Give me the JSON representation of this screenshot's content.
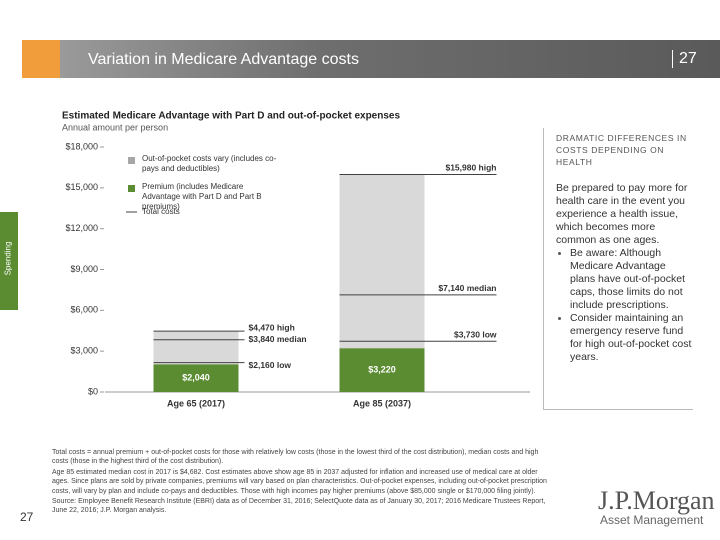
{
  "header": {
    "title": "Variation in Medicare Advantage costs",
    "page_number": "27"
  },
  "side_tab": "Spending",
  "chart_data": {
    "type": "stacked-bar",
    "title": "Estimated Medicare Advantage with Part D and out-of-pocket expenses",
    "subtitle": "Annual amount per person",
    "categories": [
      "Age 65 (2017)",
      "Age 85 (2037)"
    ],
    "series": [
      {
        "name": "Premium (includes Medicare Advantage with Part D and Part B premiums)",
        "color": "#5b8c32",
        "values": [
          2040,
          3220
        ],
        "value_labels": [
          "$2,040",
          "$3,220"
        ]
      },
      {
        "name": "Out-of-pocket costs vary (includes co-pays and deductibles)",
        "color": "#d9d9d9",
        "values": [
          2430,
          12760
        ]
      }
    ],
    "total_costs": {
      "name": "Total costs",
      "color": "#404040",
      "levels": [
        {
          "values": [
            4470,
            15980
          ],
          "value_labels": [
            "$4,470 high",
            "$15,980 high"
          ]
        },
        {
          "values": [
            3840,
            7140
          ],
          "value_labels": [
            "$3,840 median",
            "$7,140 median"
          ]
        },
        {
          "values": [
            2160,
            3730
          ],
          "value_labels": [
            "$2,160 low",
            "$3,730 low"
          ]
        }
      ]
    },
    "ylim": [
      0,
      18000
    ],
    "yticks": [
      {
        "value": 0,
        "label": "$0"
      },
      {
        "value": 3000,
        "label": "$3,000"
      },
      {
        "value": 6000,
        "label": "$6,000"
      },
      {
        "value": 9000,
        "label": "$9,000"
      },
      {
        "value": 12000,
        "label": "$12,000"
      },
      {
        "value": 15000,
        "label": "$15,000"
      },
      {
        "value": 18000,
        "label": "$18,000"
      }
    ],
    "grid": false
  },
  "sidebar": {
    "heading": "DRAMATIC DIFFERENCES IN COSTS DEPENDING ON HEALTH",
    "text": "Be prepared to pay more for health care in the event you experience a health issue, which becomes more common as one ages.",
    "bullets": [
      "Be aware: Although Medicare Advantage plans have out-of-pocket caps, those limits do not include prescriptions.",
      "Consider maintaining an emergency reserve fund for high out-of-pocket cost years."
    ]
  },
  "footnotes": [
    "Total costs = annual premium + out-of-pocket costs for those with relatively low costs (those in the lowest third of the cost distribution), median costs and high costs (those in the highest third of the cost distribution).",
    "Age 85 estimated median cost in 2017 is $4,682. Cost estimates above show age 85 in 2037 adjusted for inflation and increased use of medical care at older ages. Since plans are sold by private companies, premiums will vary based on plan characteristics. Out-of-pocket expenses, including out-of-pocket prescription costs, will vary by plan and include co-pays and deductibles. Those with high incomes pay higher premiums (above $85,000 single or $170,000 filing jointly).",
    "Source: Employee Benefit Research Institute (EBRI) data as of December 31, 2016; SelectQuote data as of January 30, 2017; 2016 Medicare Trustees Report, June 22, 2016; J.P. Morgan analysis."
  ],
  "logo": {
    "name": "J.P.Morgan",
    "subtitle": "Asset Management"
  }
}
